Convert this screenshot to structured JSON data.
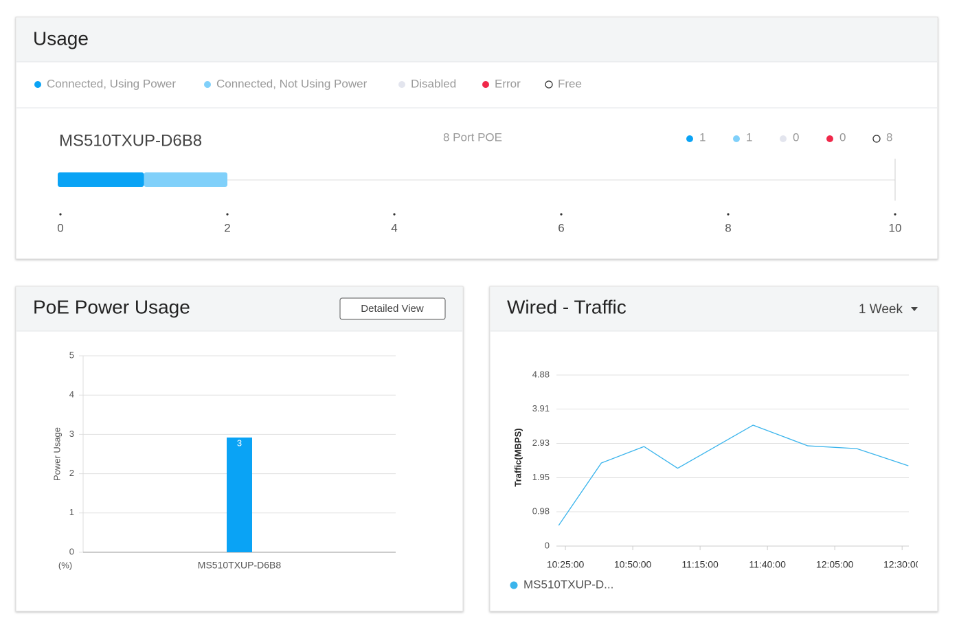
{
  "usage": {
    "title": "Usage",
    "legend": [
      {
        "label": "Connected, Using Power",
        "color": "#0aa3f5"
      },
      {
        "label": "Connected, Not Using Power",
        "color": "#80d0fa"
      },
      {
        "label": "Disabled",
        "color": "#e3e5ee"
      },
      {
        "label": "Error",
        "color": "#f0284a"
      },
      {
        "label": "Free",
        "color": "#ffffff",
        "hollow": true
      }
    ],
    "device": "MS510TXUP-D6B8",
    "subtitle": "8 Port POE",
    "counts": [
      1,
      1,
      0,
      0,
      8
    ],
    "bar": {
      "type": "bar",
      "values": [
        1,
        1
      ],
      "xlim": [
        0,
        10
      ],
      "xticks": [
        0,
        2,
        4,
        6,
        8,
        10
      ]
    }
  },
  "poe": {
    "title": "PoE Power Usage",
    "button": "Detailed View",
    "chart": {
      "type": "bar",
      "ylabel": "Power Usage",
      "unit": "(%)",
      "categories": [
        "MS510TXUP-D6B8"
      ],
      "values": [
        2.92
      ],
      "value_labels": [
        "3"
      ],
      "color": "#0aa3f5",
      "ylim": [
        0,
        5
      ],
      "yticks": [
        0,
        1,
        2,
        3,
        4,
        5
      ],
      "grid": true
    }
  },
  "traffic": {
    "title": "Wired - Traffic",
    "range": "1 Week",
    "chart": {
      "type": "line",
      "ylabel": "Traffic(MBPS)",
      "x": [
        "10:22:30",
        "10:38:20",
        "10:54:10",
        "11:06:40",
        "11:34:40",
        "11:55:00",
        "12:13:10",
        "12:32:20"
      ],
      "xlim": [
        "10:21:40",
        "12:32:30"
      ],
      "xticks": [
        "10:25:00",
        "10:50:00",
        "11:15:00",
        "11:40:00",
        "12:05:00",
        "12:30:00"
      ],
      "series": [
        {
          "name": "MS510TXUP-D...",
          "color": "#3ab4ec",
          "values": [
            0.59,
            2.37,
            2.84,
            2.22,
            3.45,
            2.86,
            2.78,
            2.29
          ]
        }
      ],
      "ylim": [
        0,
        4.88
      ],
      "yticks": [
        0,
        0.98,
        1.95,
        2.93,
        3.91,
        4.88
      ],
      "grid": true
    }
  }
}
